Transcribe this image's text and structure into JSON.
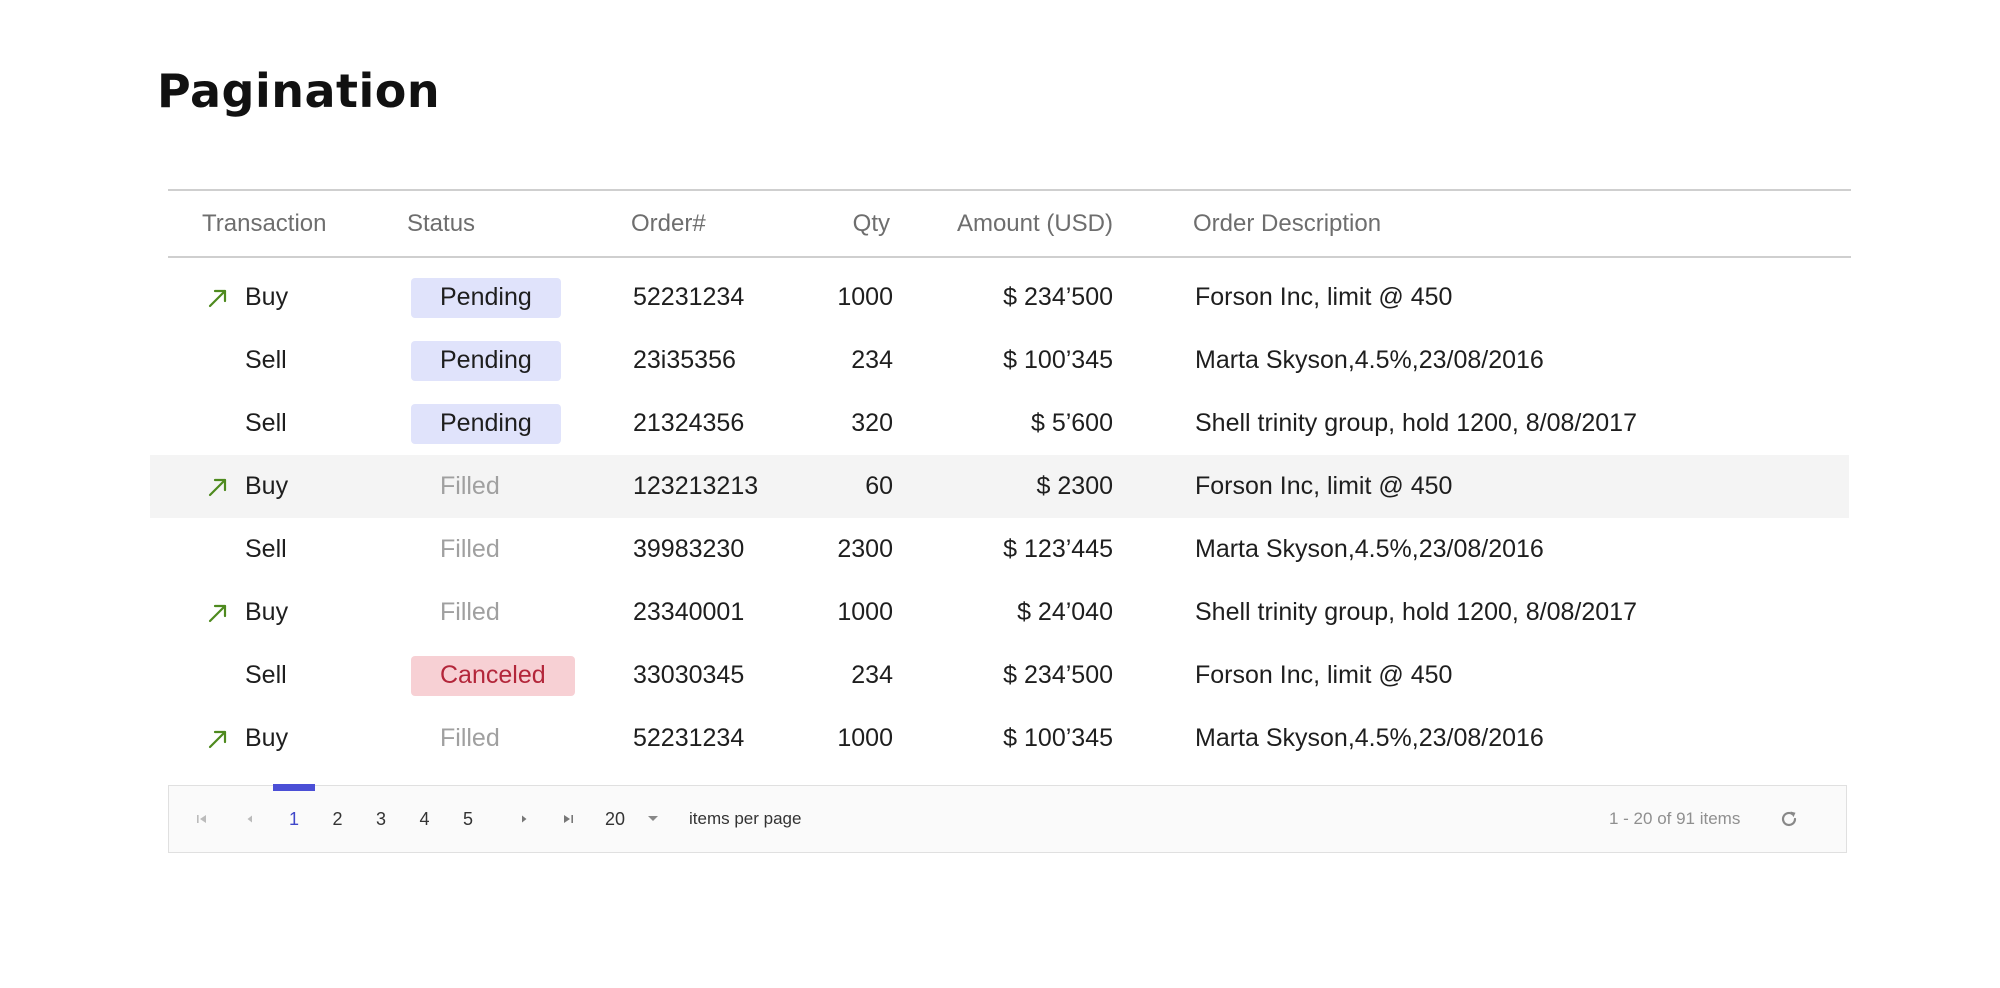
{
  "page": {
    "title": "Pagination"
  },
  "columns": {
    "transaction": "Transaction",
    "status": "Status",
    "order": "Order#",
    "qty": "Qty",
    "amount": "Amount (USD)",
    "description": "Order Description"
  },
  "rows": [
    {
      "arrow": true,
      "transaction": "Buy",
      "status": "Pending",
      "status_kind": "pending",
      "order": "52231234",
      "qty": "1000",
      "amount": "$ 234’500",
      "description": "Forson Inc, limit @ 450"
    },
    {
      "arrow": false,
      "transaction": "Sell",
      "status": "Pending",
      "status_kind": "pending",
      "order": "23i35356",
      "qty": "234",
      "amount": "$ 100’345",
      "description": "Marta Skyson,4.5%,23/08/2016"
    },
    {
      "arrow": false,
      "transaction": "Sell",
      "status": "Pending",
      "status_kind": "pending",
      "order": "21324356",
      "qty": "320",
      "amount": "$ 5’600",
      "description": "Shell trinity group, hold 1200, 8/08/2017"
    },
    {
      "arrow": true,
      "transaction": "Buy",
      "status": "Filled",
      "status_kind": "filled",
      "order": "123213213",
      "qty": "60",
      "amount": "$ 2300",
      "description": "Forson Inc, limit @ 450"
    },
    {
      "arrow": false,
      "transaction": "Sell",
      "status": "Filled",
      "status_kind": "filled",
      "order": "39983230",
      "qty": "2300",
      "amount": "$ 123’445",
      "description": "Marta Skyson,4.5%,23/08/2016"
    },
    {
      "arrow": true,
      "transaction": "Buy",
      "status": "Filled",
      "status_kind": "filled",
      "order": "23340001",
      "qty": "1000",
      "amount": "$ 24’040",
      "description": "Shell trinity group, hold 1200, 8/08/2017"
    },
    {
      "arrow": false,
      "transaction": "Sell",
      "status": "Canceled",
      "status_kind": "canceled",
      "order": "33030345",
      "qty": "234",
      "amount": "$ 234’500",
      "description": "Forson Inc, limit @ 450"
    },
    {
      "arrow": true,
      "transaction": "Buy",
      "status": "Filled",
      "status_kind": "filled",
      "order": "52231234",
      "qty": "1000",
      "amount": "$ 100’345",
      "description": "Marta Skyson,4.5%,23/08/2016"
    }
  ],
  "pager": {
    "pages": [
      "1",
      "2",
      "3",
      "4",
      "5"
    ],
    "current_page": "1",
    "page_size": "20",
    "page_size_label": "items per page",
    "info": "1 - 20 of 91 items"
  },
  "colors": {
    "buy_arrow": "#4e8a1e",
    "accent": "#4b4fd6",
    "pending_bg": "#e0e3fb",
    "canceled_bg": "#f7d0d4",
    "canceled_text": "#b3263a"
  },
  "icons": {
    "buy": "arrow-up-right-icon",
    "first": "first-page-icon",
    "prev": "prev-page-icon",
    "next": "next-page-icon",
    "last": "last-page-icon",
    "dropdown": "chevron-down-icon",
    "refresh": "refresh-icon"
  }
}
